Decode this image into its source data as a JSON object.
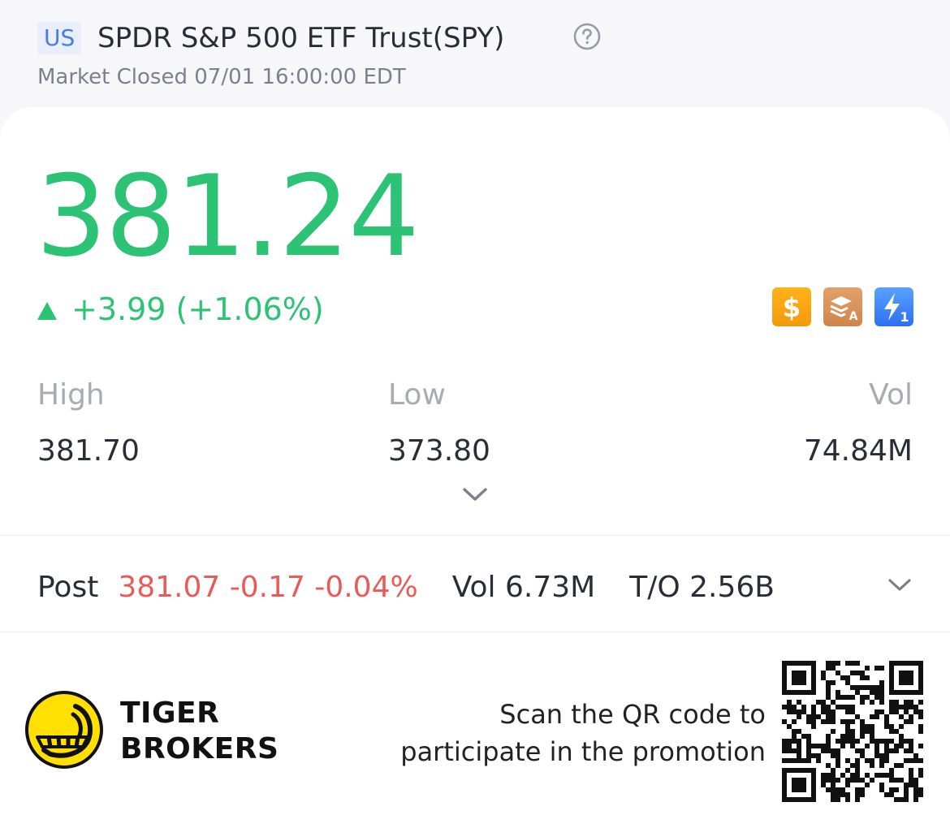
{
  "header": {
    "market_badge": "US",
    "title": "SPDR S&P 500 ETF Trust(SPY)",
    "status": "Market Closed 07/01 16:00:00 EDT",
    "help_icon": "help-circle-icon"
  },
  "quote": {
    "price": "381.24",
    "change": "+3.99 (+1.06%)",
    "direction": "up",
    "up_color": "#2cc374",
    "down_color": "#e85b58"
  },
  "feature_badges": [
    {
      "name": "dollar-badge-icon",
      "color": "#f5a623"
    },
    {
      "name": "layers-a-badge-icon",
      "color": "#d99458"
    },
    {
      "name": "lightning-1-badge-icon",
      "color": "#3b82f6"
    }
  ],
  "stats": {
    "high_label": "High",
    "high_value": "381.70",
    "low_label": "Low",
    "low_value": "373.80",
    "vol_label": "Vol",
    "vol_value": "74.84M",
    "expand_icon": "chevron-down-icon"
  },
  "post_market": {
    "label": "Post",
    "values": "381.07 -0.17 -0.04%",
    "volume": "Vol 6.73M",
    "turnover": "T/O 2.56B",
    "expand_icon": "chevron-down-icon"
  },
  "footer": {
    "brand_line1": "TIGER",
    "brand_line2": "BROKERS",
    "promo_line1": "Scan the QR code to",
    "promo_line2": "participate in the promotion",
    "logo_icon": "tiger-logo-icon",
    "qr_icon": "qr-code-icon"
  }
}
